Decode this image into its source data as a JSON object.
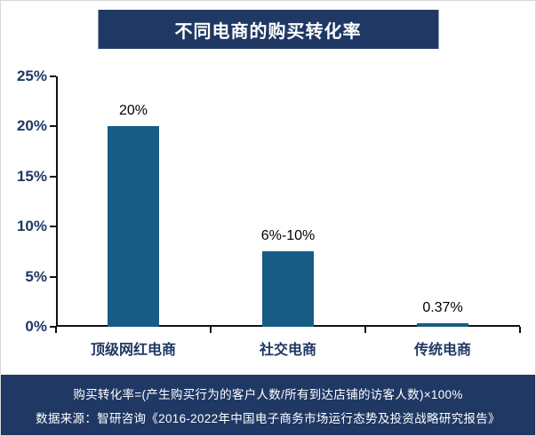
{
  "colors": {
    "navy": "#1F3864",
    "bar_blue": "#175C84",
    "axis_black": "#111111",
    "title_text": "#ffffff"
  },
  "chart_data": {
    "type": "bar",
    "title": "不同电商的购买转化率",
    "categories": [
      "顶级网红电商",
      "社交电商",
      "传统电商"
    ],
    "values": [
      20,
      7.5,
      0.37
    ],
    "value_labels": [
      "20%",
      "6%-10%",
      "0.37%"
    ],
    "xlabel": "",
    "ylabel": "",
    "ylim": [
      0,
      25
    ],
    "yticks": [
      0,
      5,
      10,
      15,
      20,
      25
    ],
    "ytick_labels": [
      "0%",
      "5%",
      "10%",
      "15%",
      "20%",
      "25%"
    ],
    "bar_color": "#175C84",
    "grid": false,
    "legend": false
  },
  "footer": {
    "line1": "购买转化率=(产生购买行为的客户人数/所有到达店铺的访客人数)×100%",
    "line2": "数据来源：智研咨询《2016-2022年中国电子商务市场运行态势及投资战略研究报告》"
  }
}
